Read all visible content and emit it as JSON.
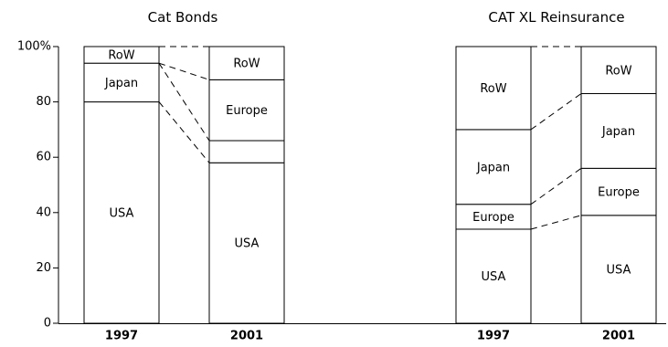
{
  "chart_data": [
    {
      "type": "bar",
      "stacked": true,
      "percent": true,
      "title": "Cat Bonds",
      "categories": [
        "1997",
        "2001"
      ],
      "series": [
        {
          "name": "USA",
          "values": [
            80,
            58
          ]
        },
        {
          "name": "",
          "values": [
            0,
            8
          ]
        },
        {
          "name": "Japan",
          "values": [
            14,
            0
          ]
        },
        {
          "name": "Europe",
          "values": [
            0,
            22
          ]
        },
        {
          "name": "RoW",
          "values": [
            6,
            12
          ]
        }
      ],
      "connector_levels": [
        [
          94,
          88
        ],
        [
          94,
          66
        ],
        [
          80,
          58
        ],
        [
          100,
          100
        ]
      ],
      "ylim": [
        0,
        100
      ],
      "yticks": [
        "0",
        "20",
        "40",
        "60",
        "80",
        "100%"
      ],
      "grid": false
    },
    {
      "type": "bar",
      "stacked": true,
      "percent": true,
      "title": "CAT XL Reinsurance",
      "categories": [
        "1997",
        "2001"
      ],
      "series": [
        {
          "name": "USA",
          "values": [
            34,
            39
          ]
        },
        {
          "name": "Europe",
          "values": [
            9,
            17
          ]
        },
        {
          "name": "Japan",
          "values": [
            27,
            27
          ]
        },
        {
          "name": "RoW",
          "values": [
            30,
            17
          ]
        }
      ],
      "connector_levels": [
        [
          34,
          39
        ],
        [
          43,
          56
        ],
        [
          70,
          83
        ],
        [
          100,
          100
        ]
      ],
      "ylim": [
        0,
        100
      ],
      "grid": false
    }
  ]
}
